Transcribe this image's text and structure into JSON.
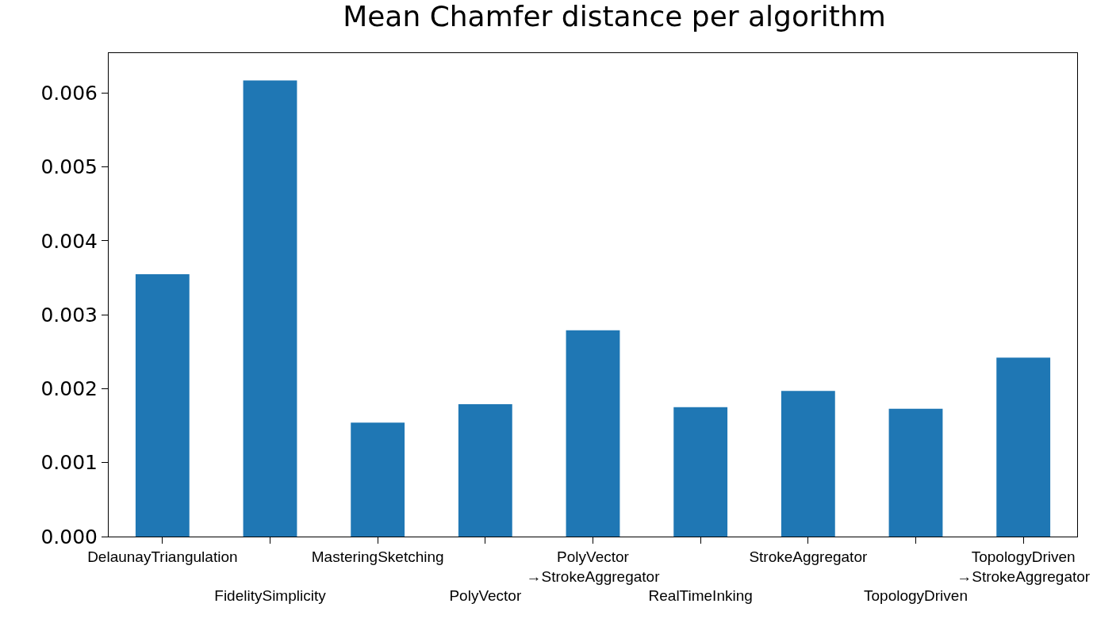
{
  "chart_data": {
    "type": "bar",
    "title": "Mean Chamfer distance per algorithm",
    "categories": [
      "DelaunayTriangulation",
      "FidelitySimplicity",
      "MasteringSketching",
      "PolyVector",
      "PolyVector\n→StrokeAggregator",
      "RealTimeInking",
      "StrokeAggregator",
      "TopologyDriven",
      "TopologyDriven\n→StrokeAggregator"
    ],
    "values": [
      0.00355,
      0.00617,
      0.00154,
      0.00179,
      0.00279,
      0.00175,
      0.00197,
      0.00173,
      0.00242
    ],
    "color": "#1f77b4",
    "ylim": [
      0,
      0.00654
    ],
    "yticks": [
      {
        "value": 0,
        "label": "0.000"
      },
      {
        "value": 0.001,
        "label": "0.001"
      },
      {
        "value": 0.002,
        "label": "0.002"
      },
      {
        "value": 0.003,
        "label": "0.003"
      },
      {
        "value": 0.004,
        "label": "0.004"
      },
      {
        "value": 0.005,
        "label": "0.005"
      },
      {
        "value": 0.006,
        "label": "0.006"
      }
    ],
    "grid": false
  }
}
